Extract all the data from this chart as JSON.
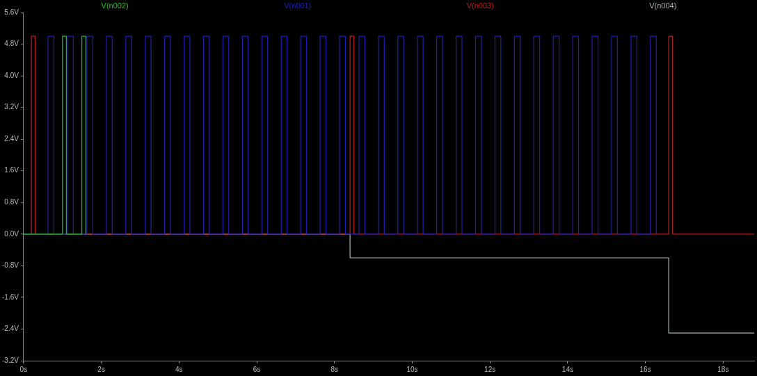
{
  "chart_data": {
    "type": "line",
    "legend": "top",
    "marker": "none",
    "line_style": "solid",
    "xlim": [
      0,
      18.8
    ],
    "xticks": [
      {
        "value": 0,
        "label": "0s"
      },
      {
        "value": 2,
        "label": "2s"
      },
      {
        "value": 4,
        "label": "4s"
      },
      {
        "value": 6,
        "label": "6s"
      },
      {
        "value": 8,
        "label": "8s"
      },
      {
        "value": 10,
        "label": "10s"
      },
      {
        "value": 12,
        "label": "12s"
      },
      {
        "value": 14,
        "label": "14s"
      },
      {
        "value": 16,
        "label": "16s"
      },
      {
        "value": 18,
        "label": "18s"
      }
    ],
    "ylim": [
      -3.2,
      5.6
    ],
    "yticks": [
      {
        "value": -3.2,
        "label": "-3.2V"
      },
      {
        "value": -2.4,
        "label": "-2.4V"
      },
      {
        "value": -1.6,
        "label": "-1.6V"
      },
      {
        "value": -0.8,
        "label": "-0.8V"
      },
      {
        "value": 0,
        "label": "0.0V"
      },
      {
        "value": 0.8,
        "label": "0.8V"
      },
      {
        "value": 1.6,
        "label": "1.6V"
      },
      {
        "value": 2.4,
        "label": "2.4V"
      },
      {
        "value": 3.2,
        "label": "3.2V"
      },
      {
        "value": 4.0,
        "label": "4.0V"
      },
      {
        "value": 4.8,
        "label": "4.8V"
      },
      {
        "value": 5.6,
        "label": "5.6V"
      }
    ],
    "series": [
      {
        "name": "V(n002)",
        "color": "#22c022",
        "x": [
          0,
          1.0,
          1.0,
          1.1,
          1.1,
          1.5,
          1.5,
          1.6,
          1.6
        ],
        "values": [
          0,
          0,
          5,
          5,
          0,
          0,
          5,
          5,
          0
        ]
      },
      {
        "name": "V(n001)",
        "color": "#2020b0",
        "x": [
          0,
          0.63,
          0.63,
          0.78,
          0.78,
          1.13,
          1.13,
          1.28,
          1.28,
          1.63,
          1.63,
          1.78,
          1.78,
          2.13,
          2.13,
          2.28,
          2.28,
          2.63,
          2.63,
          2.78,
          2.78,
          3.13,
          3.13,
          3.28,
          3.28,
          3.63,
          3.63,
          3.78,
          3.78,
          4.13,
          4.13,
          4.28,
          4.28,
          4.63,
          4.63,
          4.78,
          4.78,
          5.13,
          5.13,
          5.28,
          5.28,
          5.63,
          5.63,
          5.78,
          5.78,
          6.13,
          6.13,
          6.28,
          6.28,
          6.63,
          6.63,
          6.78,
          6.78,
          7.13,
          7.13,
          7.28,
          7.28,
          7.63,
          7.63,
          7.78,
          7.78,
          8.13,
          8.13,
          8.28,
          8.28,
          8.63,
          8.63,
          8.78,
          8.78,
          9.13,
          9.13,
          9.28,
          9.28,
          9.63,
          9.63,
          9.78,
          9.78,
          10.13,
          10.13,
          10.28,
          10.28,
          10.63,
          10.63,
          10.78,
          10.78,
          11.13,
          11.13,
          11.28,
          11.28,
          11.63,
          11.63,
          11.78,
          11.78,
          12.13,
          12.13,
          12.28,
          12.28,
          12.63,
          12.63,
          12.78,
          12.78,
          13.13,
          13.13,
          13.28,
          13.28,
          13.63,
          13.63,
          13.78,
          13.78,
          14.13,
          14.13,
          14.28,
          14.28,
          14.63,
          14.63,
          14.78,
          14.78,
          15.13,
          15.13,
          15.28,
          15.28,
          15.63,
          15.63,
          15.78,
          15.78,
          16.13,
          16.13,
          16.28,
          16.28
        ],
        "values": [
          0,
          0,
          5,
          5,
          0,
          0,
          5,
          5,
          0,
          0,
          5,
          5,
          0,
          0,
          5,
          5,
          0,
          0,
          5,
          5,
          0,
          0,
          5,
          5,
          0,
          0,
          5,
          5,
          0,
          0,
          5,
          5,
          0,
          0,
          5,
          5,
          0,
          0,
          5,
          5,
          0,
          0,
          5,
          5,
          0,
          0,
          5,
          5,
          0,
          0,
          5,
          5,
          0,
          0,
          5,
          5,
          0,
          0,
          5,
          5,
          0,
          0,
          5,
          5,
          0,
          0,
          5,
          5,
          0,
          0,
          5,
          5,
          0,
          0,
          5,
          5,
          0,
          0,
          5,
          5,
          0,
          0,
          5,
          5,
          0,
          0,
          5,
          5,
          0,
          0,
          5,
          5,
          0,
          0,
          5,
          5,
          0,
          0,
          5,
          5,
          0,
          0,
          5,
          5,
          0,
          0,
          5,
          5,
          0,
          0,
          5,
          5,
          0,
          0,
          5,
          5,
          0,
          0,
          5,
          5,
          0,
          0,
          5,
          5,
          0,
          0,
          5,
          5,
          0
        ]
      },
      {
        "name": "V(n003)",
        "color": "#c02020",
        "x": [
          0,
          0.2,
          0.2,
          0.3,
          0.3,
          8.4,
          8.4,
          8.5,
          8.5,
          16.6,
          16.6,
          16.7,
          16.7,
          18.8
        ],
        "values": [
          0,
          0,
          5,
          5,
          0,
          0,
          5,
          5,
          0,
          0,
          5,
          5,
          0,
          0
        ]
      },
      {
        "name": "V(n004)",
        "color": "#a8b8b8",
        "x": [
          0,
          8.4,
          8.4,
          16.6,
          16.6,
          18.8
        ],
        "values": [
          0,
          0,
          -0.6,
          -0.6,
          -2.5,
          -2.5
        ]
      }
    ]
  }
}
